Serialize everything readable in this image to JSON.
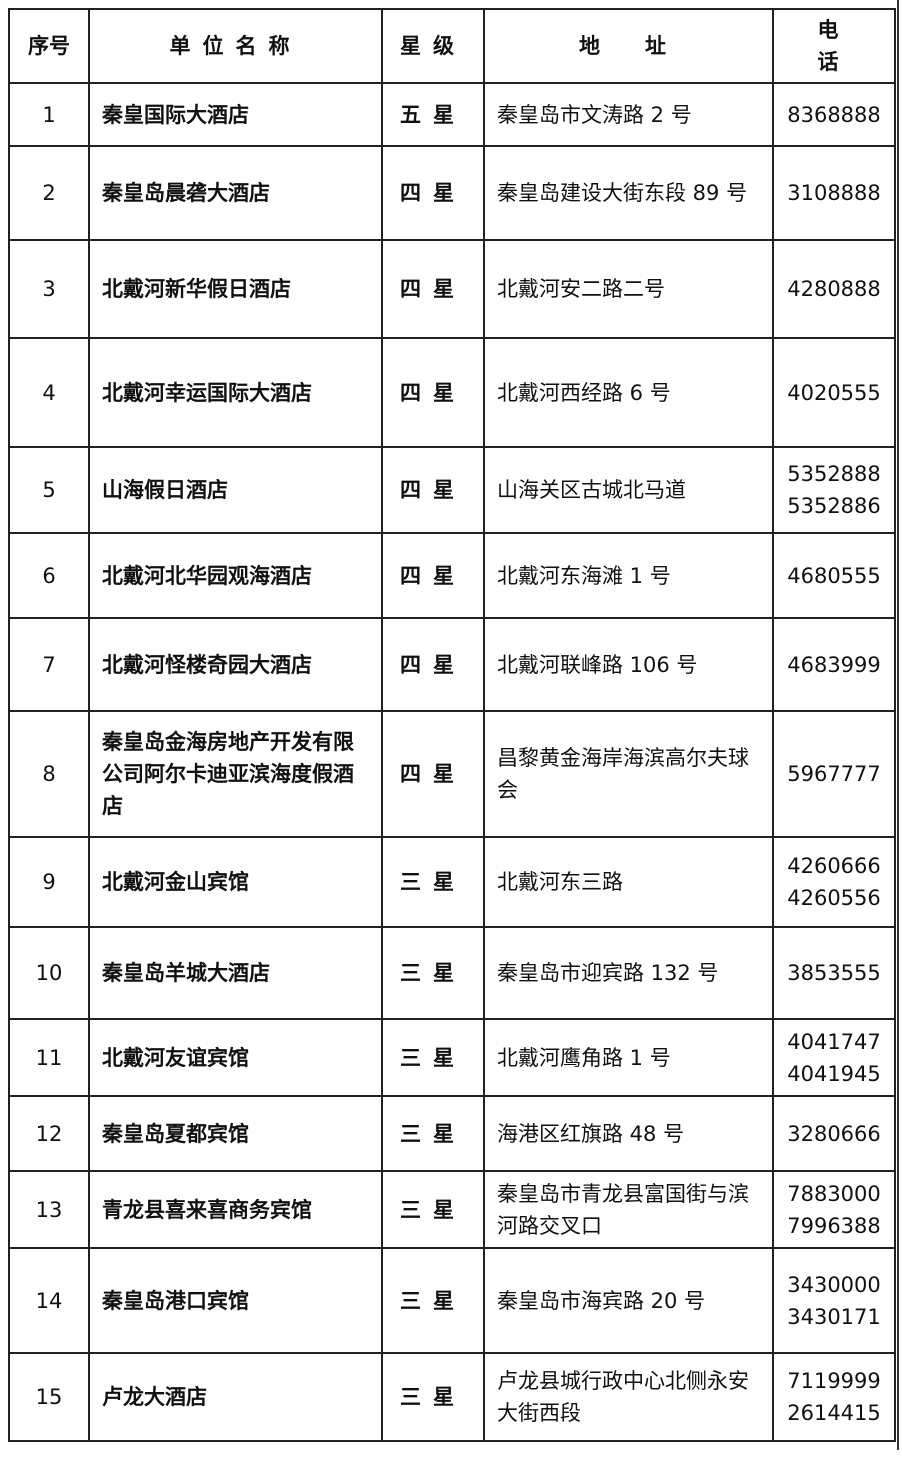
{
  "headers": {
    "no": "序号",
    "name": "单位名称",
    "star": "星级",
    "address": "地　址",
    "phone": "电　话"
  },
  "rows": [
    {
      "no": "1",
      "name": "秦皇国际大酒店",
      "star": "五星",
      "address": "秦皇岛市文涛路 2 号",
      "phone": [
        "8368888"
      ]
    },
    {
      "no": "2",
      "name": "秦皇岛晨砻大酒店",
      "star": "四星",
      "address": "秦皇岛建设大街东段 89 号",
      "phone": [
        "3108888"
      ]
    },
    {
      "no": "3",
      "name": "北戴河新华假日酒店",
      "star": "四星",
      "address": "北戴河安二路二号",
      "phone": [
        "4280888"
      ]
    },
    {
      "no": "4",
      "name": "北戴河幸运国际大酒店",
      "star": "四星",
      "address": "北戴河西经路 6 号",
      "phone": [
        "4020555"
      ]
    },
    {
      "no": "5",
      "name": "山海假日酒店",
      "star": "四星",
      "address": "山海关区古城北马道",
      "phone": [
        "5352888",
        "5352886"
      ]
    },
    {
      "no": "6",
      "name": "北戴河北华园观海酒店",
      "star": "四星",
      "address": "北戴河东海滩 1 号",
      "phone": [
        "4680555"
      ]
    },
    {
      "no": "7",
      "name": "北戴河怪楼奇园大酒店",
      "star": "四星",
      "address": "北戴河联峰路 106 号",
      "phone": [
        "4683999"
      ]
    },
    {
      "no": "8",
      "name": "秦皇岛金海房地产开发有限公司阿尔卡迪亚滨海度假酒店",
      "star": "四星",
      "address": "昌黎黄金海岸海滨高尔夫球会",
      "phone": [
        "5967777"
      ]
    },
    {
      "no": "9",
      "name": "北戴河金山宾馆",
      "star": "三星",
      "address": "北戴河东三路",
      "phone": [
        "4260666",
        "4260556"
      ]
    },
    {
      "no": "10",
      "name": "秦皇岛羊城大酒店",
      "star": "三星",
      "address": "秦皇岛市迎宾路 132 号",
      "phone": [
        "3853555"
      ]
    },
    {
      "no": "11",
      "name": "北戴河友谊宾馆",
      "star": "三星",
      "address": "北戴河鹰角路 1 号",
      "phone": [
        "4041747",
        "4041945"
      ]
    },
    {
      "no": "12",
      "name": "秦皇岛夏都宾馆",
      "star": "三星",
      "address": "海港区红旗路 48 号",
      "phone": [
        "3280666"
      ]
    },
    {
      "no": "13",
      "name": "青龙县喜来喜商务宾馆",
      "star": "三星",
      "address": "秦皇岛市青龙县富国街与滨河路交叉口",
      "phone": [
        "7883000",
        "7996388"
      ]
    },
    {
      "no": "14",
      "name": "秦皇岛港口宾馆",
      "star": "三星",
      "address": "秦皇岛市海宾路 20 号",
      "phone": [
        "3430000",
        "3430171"
      ]
    },
    {
      "no": "15",
      "name": "卢龙大酒店",
      "star": "三星",
      "address": "卢龙县城行政中心北侧永安大街西段",
      "phone": [
        "7119999",
        "2614415"
      ]
    }
  ]
}
